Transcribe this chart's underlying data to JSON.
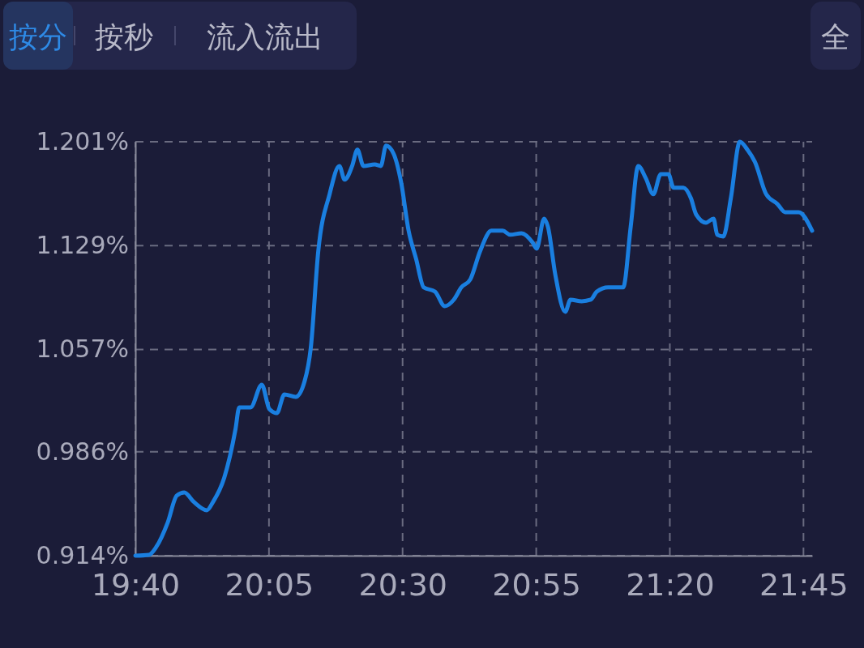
{
  "chart_data": {
    "type": "line",
    "annotations": [
      "按分",
      "按秒",
      "流入流出",
      "全"
    ],
    "x": [
      19.6667,
      19.709,
      19.7324,
      19.7676,
      19.7958,
      19.8193,
      19.8498,
      19.8897,
      19.9085,
      19.9437,
      19.9789,
      19.9906,
      20.0259,
      20.0611,
      20.0845,
      20.108,
      20.1315,
      20.1667,
      20.1949,
      20.2136,
      20.2371,
      20.2723,
      20.3028,
      20.3193,
      20.3427,
      20.3592,
      20.378,
      20.4132,
      20.432,
      20.4484,
      20.4719,
      20.4953,
      20.5188,
      20.5423,
      20.5658,
      20.601,
      20.6315,
      20.6597,
      20.6831,
      20.7113,
      20.7418,
      20.777,
      20.8122,
      20.8357,
      20.8709,
      20.9061,
      20.9179,
      20.9413,
      20.9531,
      20.9765,
      21.0071,
      21.0235,
      21.0587,
      21.0869,
      21.1057,
      21.1409,
      21.1878,
      21.2113,
      21.2348,
      21.2582,
      21.2817,
      21.3052,
      21.3287,
      21.3451,
      21.3756,
      21.3991,
      21.4155,
      21.446,
      21.4695,
      21.4812,
      21.5,
      21.5235,
      21.5517,
      21.5751,
      21.5986,
      21.6338,
      21.669,
      21.6925,
      21.7348,
      21.777
    ],
    "series": [
      {
        "color": "#1a7fe0",
        "values": [
          0.914,
          0.9146,
          0.9202,
          0.937,
          0.9556,
          0.9578,
          0.9511,
          0.9455,
          0.9511,
          0.9679,
          1.0016,
          1.0168,
          1.0168,
          1.0325,
          1.0157,
          1.0129,
          1.0258,
          1.0241,
          1.0353,
          1.0578,
          1.1252,
          1.1646,
          1.1842,
          1.1747,
          1.1842,
          1.1955,
          1.1842,
          1.1853,
          1.1842,
          1.1983,
          1.1927,
          1.173,
          1.1393,
          1.1196,
          1.1,
          1.0971,
          1.087,
          1.0915,
          1.1,
          1.1056,
          1.1252,
          1.1393,
          1.1393,
          1.1365,
          1.1376,
          1.1309,
          1.1269,
          1.1477,
          1.1421,
          1.1084,
          1.0831,
          1.0915,
          1.0904,
          1.0915,
          1.0971,
          1.1,
          1.1,
          1.1421,
          1.1842,
          1.1758,
          1.1646,
          1.1786,
          1.1786,
          1.1691,
          1.1691,
          1.1618,
          1.1505,
          1.1449,
          1.1477,
          1.1365,
          1.1353,
          1.1618,
          1.201,
          1.1955,
          1.187,
          1.1646,
          1.1578,
          1.1522,
          1.1522,
          1.1393
        ]
      }
    ],
    "xlim": [
      19.6667,
      21.777
    ],
    "xticks": [
      {
        "value": 19.6667,
        "label": "19:40"
      },
      {
        "value": 20.0833,
        "label": "20:05"
      },
      {
        "value": 20.5,
        "label": "20:30"
      },
      {
        "value": 20.9167,
        "label": "20:55"
      },
      {
        "value": 21.3333,
        "label": "21:20"
      },
      {
        "value": 21.75,
        "label": "21:45"
      }
    ],
    "ylim": [
      0.914,
      1.201
    ],
    "yticks": [
      {
        "value": 0.914,
        "label": "0.914%"
      },
      {
        "value": 0.986,
        "label": "0.986%"
      },
      {
        "value": 1.057,
        "label": "1.057%"
      },
      {
        "value": 1.129,
        "label": "1.129%"
      },
      {
        "value": 1.201,
        "label": "1.201%"
      }
    ],
    "grid": true,
    "line_style": "solid",
    "marker": "none"
  }
}
